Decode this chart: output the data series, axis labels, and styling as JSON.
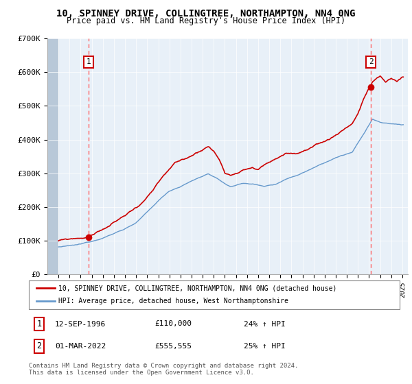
{
  "title_line1": "10, SPINNEY DRIVE, COLLINGTREE, NORTHAMPTON, NN4 0NG",
  "title_line2": "Price paid vs. HM Land Registry's House Price Index (HPI)",
  "ylim": [
    0,
    700000
  ],
  "yticks": [
    0,
    100000,
    200000,
    300000,
    400000,
    500000,
    600000,
    700000
  ],
  "ytick_labels": [
    "£0",
    "£100K",
    "£200K",
    "£300K",
    "£400K",
    "£500K",
    "£600K",
    "£700K"
  ],
  "sale1_year": 1996.71,
  "sale1_price": 110000,
  "sale2_year": 2022.17,
  "sale2_price": 555555,
  "legend_line1": "10, SPINNEY DRIVE, COLLINGTREE, NORTHAMPTON, NN4 0NG (detached house)",
  "legend_line2": "HPI: Average price, detached house, West Northamptonshire",
  "ann1_date": "12-SEP-1996",
  "ann1_price": "£110,000",
  "ann1_hpi": "24% ↑ HPI",
  "ann2_date": "01-MAR-2022",
  "ann2_price": "£555,555",
  "ann2_hpi": "25% ↑ HPI",
  "footer": "Contains HM Land Registry data © Crown copyright and database right 2024.\nThis data is licensed under the Open Government Licence v3.0.",
  "price_line_color": "#cc0000",
  "hpi_line_color": "#6699cc",
  "dashed_line_color": "#ff6666",
  "annotation_box_color": "#cc0000",
  "chart_bg": "#e8f0f8",
  "hatch_bg": "#d0d8e0"
}
